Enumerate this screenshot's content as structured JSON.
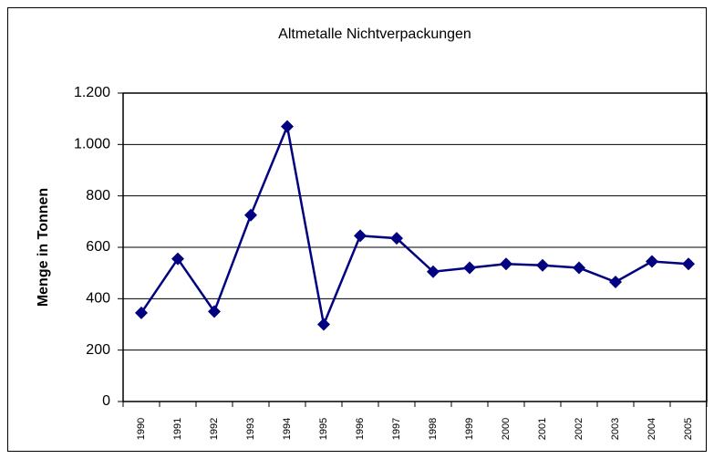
{
  "chart_data": {
    "type": "line",
    "title": "Altmetalle Nichtverpackungen",
    "y_label": "Menge in Tonnen",
    "categories": [
      "1990",
      "1991",
      "1992",
      "1993",
      "1994",
      "1995",
      "1996",
      "1997",
      "1998",
      "1999",
      "2000",
      "2001",
      "2002",
      "2003",
      "2004",
      "2005"
    ],
    "series": [
      {
        "name": "Altmetalle Nichtverpackungen",
        "color": "#000080",
        "values": [
          345,
          555,
          350,
          725,
          1070,
          300,
          645,
          635,
          505,
          520,
          535,
          530,
          520,
          465,
          545,
          535
        ]
      }
    ],
    "ylim": [
      0,
      1200
    ],
    "yticks": [
      0,
      200,
      400,
      600,
      800,
      {
        "value": 1000,
        "label": "1.000"
      },
      {
        "value": 1200,
        "label": "1.200"
      }
    ],
    "grid": true
  }
}
